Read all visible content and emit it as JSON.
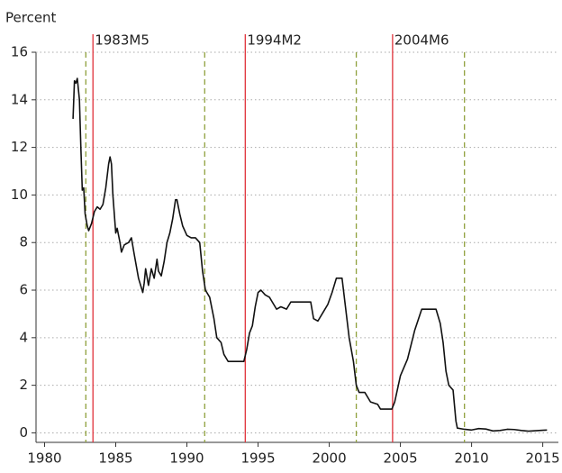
{
  "chart_data": {
    "type": "line",
    "y_axis_label": "Percent",
    "color": "#111111",
    "x": [
      1982.0,
      1982.1,
      1982.2,
      1982.3,
      1982.45,
      1982.55,
      1982.65,
      1982.75,
      1982.85,
      1983.0,
      1983.1,
      1983.3,
      1983.5,
      1983.7,
      1983.9,
      1984.1,
      1984.3,
      1984.5,
      1984.6,
      1984.7,
      1984.8,
      1985.0,
      1985.1,
      1985.3,
      1985.4,
      1985.6,
      1985.9,
      1986.1,
      1986.3,
      1986.6,
      1986.9,
      1987.0,
      1987.1,
      1987.3,
      1987.5,
      1987.7,
      1987.9,
      1988.0,
      1988.2,
      1988.4,
      1988.6,
      1988.8,
      1989.0,
      1989.2,
      1989.3,
      1989.5,
      1989.7,
      1990.0,
      1990.3,
      1990.6,
      1990.9,
      1991.1,
      1991.3,
      1991.6,
      1991.9,
      1992.1,
      1992.4,
      1992.6,
      1992.9,
      1993.2,
      1993.5,
      1993.8,
      1994.0,
      1994.2,
      1994.4,
      1994.6,
      1994.8,
      1995.0,
      1995.2,
      1995.5,
      1995.8,
      1996.0,
      1996.3,
      1996.6,
      1997.0,
      1997.3,
      1997.7,
      1998.0,
      1998.4,
      1998.7,
      1998.9,
      1999.2,
      1999.6,
      1999.9,
      2000.2,
      2000.5,
      2000.9,
      2001.1,
      2001.4,
      2001.7,
      2001.9,
      2002.1,
      2002.5,
      2002.9,
      2003.4,
      2003.6,
      2004.4,
      2004.6,
      2005.0,
      2005.5,
      2006.0,
      2006.5,
      2007.5,
      2007.8,
      2008.0,
      2008.2,
      2008.4,
      2008.7,
      2008.9,
      2009.0,
      2009.5,
      2010.0,
      2010.5,
      2011.0,
      2011.5,
      2012.0,
      2012.5,
      2013.0,
      2013.5,
      2014.0,
      2014.5,
      2015.0,
      2015.3
    ],
    "values": [
      13.2,
      14.8,
      14.7,
      14.9,
      14.0,
      12.0,
      10.2,
      10.3,
      9.2,
      8.7,
      8.5,
      8.8,
      9.3,
      9.5,
      9.4,
      9.6,
      10.3,
      11.3,
      11.6,
      11.3,
      10.0,
      8.4,
      8.6,
      8.0,
      7.6,
      7.9,
      8.0,
      8.2,
      7.5,
      6.5,
      5.9,
      6.3,
      6.9,
      6.2,
      6.9,
      6.5,
      7.3,
      6.8,
      6.6,
      7.2,
      8.0,
      8.4,
      9.0,
      9.8,
      9.8,
      9.2,
      8.7,
      8.3,
      8.2,
      8.2,
      8.0,
      6.8,
      6.0,
      5.7,
      4.8,
      4.0,
      3.8,
      3.3,
      3.0,
      3.0,
      3.0,
      3.0,
      3.0,
      3.5,
      4.2,
      4.5,
      5.3,
      5.9,
      6.0,
      5.8,
      5.7,
      5.5,
      5.2,
      5.3,
      5.2,
      5.5,
      5.5,
      5.5,
      5.5,
      5.5,
      4.8,
      4.7,
      5.1,
      5.4,
      5.9,
      6.5,
      6.5,
      5.5,
      4.0,
      3.0,
      2.0,
      1.7,
      1.7,
      1.3,
      1.2,
      1.0,
      1.0,
      1.3,
      2.4,
      3.1,
      4.3,
      5.2,
      5.2,
      4.6,
      3.8,
      2.6,
      2.0,
      1.8,
      0.5,
      0.2,
      0.15,
      0.12,
      0.18,
      0.16,
      0.08,
      0.1,
      0.15,
      0.14,
      0.1,
      0.07,
      0.09,
      0.11,
      0.12
    ],
    "xlim": [
      1979.4,
      2016.1
    ],
    "ylim": [
      -0.4,
      16
    ],
    "xticks": [
      1980,
      1985,
      1990,
      1995,
      2000,
      2005,
      2010,
      2015
    ],
    "yticks": [
      0,
      2,
      4,
      6,
      8,
      10,
      12,
      14,
      16
    ],
    "grid": true,
    "events": [
      {
        "x": 1983.4,
        "label": "1983M5"
      },
      {
        "x": 1994.1,
        "label": "1994M2"
      },
      {
        "x": 2004.45,
        "label": "2004M6"
      }
    ],
    "event_color": "#e0313a",
    "dashed_x": [
      1982.9,
      1991.25,
      2001.9,
      2009.5
    ],
    "dashed_color": "#8fa03c"
  }
}
